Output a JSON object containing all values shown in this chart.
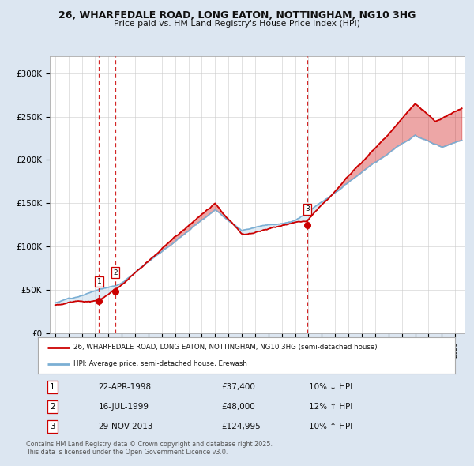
{
  "title1": "26, WHARFEDALE ROAD, LONG EATON, NOTTINGHAM, NG10 3HG",
  "title2": "Price paid vs. HM Land Registry's House Price Index (HPI)",
  "property_label": "26, WHARFEDALE ROAD, LONG EATON, NOTTINGHAM, NG10 3HG (semi-detached house)",
  "hpi_label": "HPI: Average price, semi-detached house, Erewash",
  "property_color": "#cc0000",
  "hpi_color": "#7bafd4",
  "hpi_fill_color": "#b8d4e8",
  "background_color": "#dce6f1",
  "plot_bg_color": "#ffffff",
  "grid_color": "#cccccc",
  "purchases": [
    {
      "date_num": 1998.3,
      "price": 37400,
      "label": "1",
      "note": "22-APR-1998",
      "amount": "£37,400",
      "change": "10% ↓ HPI"
    },
    {
      "date_num": 1999.54,
      "price": 48000,
      "label": "2",
      "note": "16-JUL-1999",
      "amount": "£48,000",
      "change": "12% ↑ HPI"
    },
    {
      "date_num": 2013.91,
      "price": 124995,
      "label": "3",
      "note": "29-NOV-2013",
      "amount": "£124,995",
      "change": "10% ↑ HPI"
    }
  ],
  "vline_color": "#cc0000",
  "marker_color": "#cc0000",
  "ylim": [
    0,
    320000
  ],
  "yticks": [
    0,
    50000,
    100000,
    150000,
    200000,
    250000,
    300000
  ],
  "ytick_labels": [
    "£0",
    "£50K",
    "£100K",
    "£150K",
    "£200K",
    "£250K",
    "£300K"
  ],
  "xlim_start": 1994.6,
  "xlim_end": 2025.7,
  "footer1": "Contains HM Land Registry data © Crown copyright and database right 2025.",
  "footer2": "This data is licensed under the Open Government Licence v3.0.",
  "row_data": [
    [
      "1",
      "22-APR-1998",
      "£37,400",
      "10% ↓ HPI"
    ],
    [
      "2",
      "16-JUL-1999",
      "£48,000",
      "12% ↑ HPI"
    ],
    [
      "3",
      "29-NOV-2013",
      "£124,995",
      "10% ↑ HPI"
    ]
  ]
}
